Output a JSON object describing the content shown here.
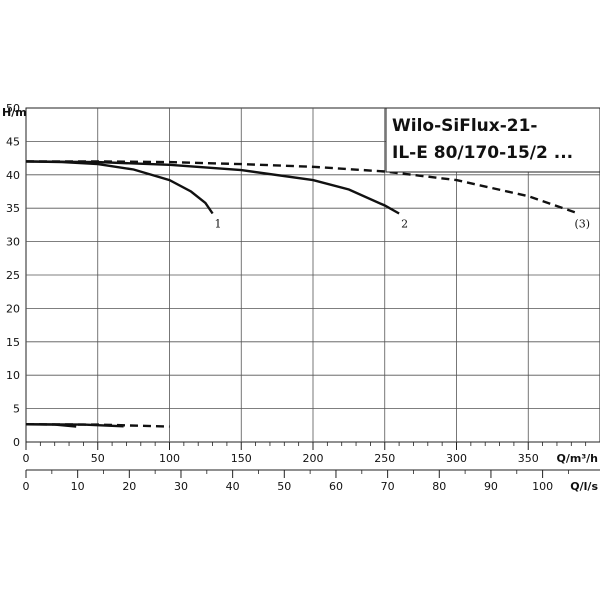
{
  "chart_data": {
    "type": "line",
    "title_lines": [
      "Wilo-SiFlux-21-",
      "IL-E 80/170-15/2 ..."
    ],
    "ylabel": "H/m",
    "xlabel": "Q/m³/h",
    "xlabel2": "Q/l/s",
    "xlim": [
      0,
      400
    ],
    "ylim": [
      0,
      50
    ],
    "x2lim": [
      0,
      111.11
    ],
    "grid": true,
    "y_ticks": [
      0,
      5,
      10,
      15,
      20,
      25,
      30,
      35,
      40,
      45,
      50
    ],
    "x_ticks": [
      0,
      50,
      100,
      150,
      200,
      250,
      300,
      350
    ],
    "x2_ticks": [
      0,
      10,
      20,
      30,
      40,
      50,
      60,
      70,
      80,
      90,
      100
    ],
    "series": [
      {
        "name": "1",
        "style": "solid",
        "x": [
          0,
          25,
          50,
          75,
          100,
          115,
          125,
          130
        ],
        "y": [
          42,
          41.9,
          41.6,
          40.8,
          39.2,
          37.5,
          35.8,
          34.2
        ]
      },
      {
        "name": "2",
        "style": "solid",
        "x": [
          0,
          50,
          100,
          150,
          200,
          225,
          250,
          260
        ],
        "y": [
          42,
          41.9,
          41.5,
          40.7,
          39.2,
          37.8,
          35.4,
          34.2
        ]
      },
      {
        "name": "(3)",
        "style": "dashed",
        "x": [
          0,
          50,
          100,
          150,
          200,
          250,
          300,
          350,
          385
        ],
        "y": [
          42,
          42,
          41.9,
          41.6,
          41.2,
          40.5,
          39.2,
          36.8,
          34.2
        ]
      },
      {
        "name": "",
        "style": "solid",
        "x": [
          0,
          20,
          35
        ],
        "y": [
          2.65,
          2.6,
          2.3
        ]
      },
      {
        "name": "",
        "style": "solid",
        "x": [
          0,
          40,
          68
        ],
        "y": [
          2.65,
          2.6,
          2.35
        ]
      },
      {
        "name": "",
        "style": "dashed",
        "x": [
          0,
          50,
          100
        ],
        "y": [
          2.65,
          2.6,
          2.3
        ]
      }
    ]
  }
}
